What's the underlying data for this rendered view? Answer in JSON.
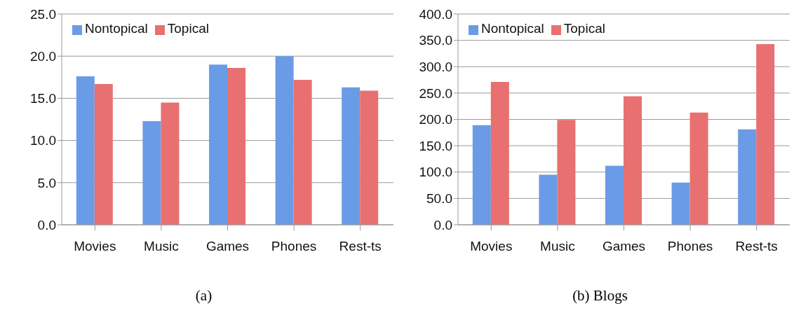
{
  "chart_data": [
    {
      "type": "bar",
      "title": "(a)",
      "categories": [
        "Movies",
        "Music",
        "Games",
        "Phones",
        "Rest-ts"
      ],
      "series": [
        {
          "name": "Nontopical",
          "color": "#6a9be6",
          "values": [
            17.6,
            12.3,
            19.0,
            20.0,
            16.3
          ]
        },
        {
          "name": "Topical",
          "color": "#e87070",
          "values": [
            16.7,
            14.5,
            18.6,
            17.2,
            15.9
          ]
        }
      ],
      "ylim": [
        0,
        25
      ],
      "yticks": [
        {
          "value": 0,
          "label": "0.0"
        },
        {
          "value": 5,
          "label": "5.0"
        },
        {
          "value": 10,
          "label": "10.0"
        },
        {
          "value": 15,
          "label": "15.0"
        },
        {
          "value": 20,
          "label": "20.0"
        },
        {
          "value": 25,
          "label": "25.0"
        }
      ],
      "grid": "y",
      "legend": "top left"
    },
    {
      "type": "bar",
      "title": "(b) Blogs",
      "categories": [
        "Movies",
        "Music",
        "Games",
        "Phones",
        "Rest-ts"
      ],
      "series": [
        {
          "name": "Nontopical",
          "color": "#6a9be6",
          "values": [
            189,
            95,
            112,
            80,
            181
          ]
        },
        {
          "name": "Topical",
          "color": "#e87070",
          "values": [
            271,
            199,
            244,
            213,
            343
          ]
        }
      ],
      "ylim": [
        0,
        400
      ],
      "yticks": [
        {
          "value": 0,
          "label": "0.0"
        },
        {
          "value": 50,
          "label": "50.0"
        },
        {
          "value": 100,
          "label": "100.0"
        },
        {
          "value": 150,
          "label": "150.0"
        },
        {
          "value": 200,
          "label": "200.0"
        },
        {
          "value": 250,
          "label": "250.0"
        },
        {
          "value": 300,
          "label": "300.0"
        },
        {
          "value": 350,
          "label": "350.0"
        },
        {
          "value": 400,
          "label": "400.0"
        }
      ],
      "grid": "y",
      "legend": "top left"
    }
  ]
}
